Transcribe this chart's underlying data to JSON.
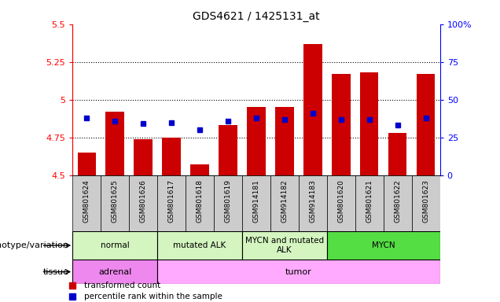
{
  "title": "GDS4621 / 1425131_at",
  "samples": [
    "GSM801624",
    "GSM801625",
    "GSM801626",
    "GSM801617",
    "GSM801618",
    "GSM801619",
    "GSM914181",
    "GSM914182",
    "GSM914183",
    "GSM801620",
    "GSM801621",
    "GSM801622",
    "GSM801623"
  ],
  "bar_values": [
    4.65,
    4.92,
    4.74,
    4.75,
    4.57,
    4.83,
    4.95,
    4.95,
    5.37,
    5.17,
    5.18,
    4.78,
    5.17
  ],
  "dot_values": [
    4.88,
    4.86,
    4.84,
    4.85,
    4.8,
    4.86,
    4.88,
    4.87,
    4.91,
    4.87,
    4.87,
    4.83,
    4.88
  ],
  "ylim": [
    4.5,
    5.5
  ],
  "yticks": [
    4.5,
    4.75,
    5.0,
    5.25,
    5.5
  ],
  "ytick_labels": [
    "4.5",
    "4.75",
    "5",
    "5.25",
    "5.5"
  ],
  "y2ticks": [
    0,
    25,
    50,
    75,
    100
  ],
  "y2tick_labels": [
    "0",
    "25",
    "50",
    "75",
    "100%"
  ],
  "bar_color": "#cc0000",
  "dot_color": "#0000cc",
  "bar_bottom": 4.5,
  "genotype_groups": [
    {
      "label": "normal",
      "start": 0,
      "end": 3,
      "color": "#d4f5c0"
    },
    {
      "label": "mutated ALK",
      "start": 3,
      "end": 6,
      "color": "#d4f5c0"
    },
    {
      "label": "MYCN and mutated\nALK",
      "start": 6,
      "end": 9,
      "color": "#d4f5c0"
    },
    {
      "label": "MYCN",
      "start": 9,
      "end": 13,
      "color": "#55dd44"
    }
  ],
  "tissue_groups": [
    {
      "label": "adrenal",
      "start": 0,
      "end": 3,
      "color": "#ee88ee"
    },
    {
      "label": "tumor",
      "start": 3,
      "end": 13,
      "color": "#ffaaff"
    }
  ],
  "legend_items": [
    {
      "color": "#cc0000",
      "label": "transformed count"
    },
    {
      "color": "#0000cc",
      "label": "percentile rank within the sample"
    }
  ],
  "genotype_label": "genotype/variation",
  "tissue_label": "tissue",
  "grid_color": "black",
  "bg_color": "#ffffff",
  "tick_bg_color": "#cccccc"
}
